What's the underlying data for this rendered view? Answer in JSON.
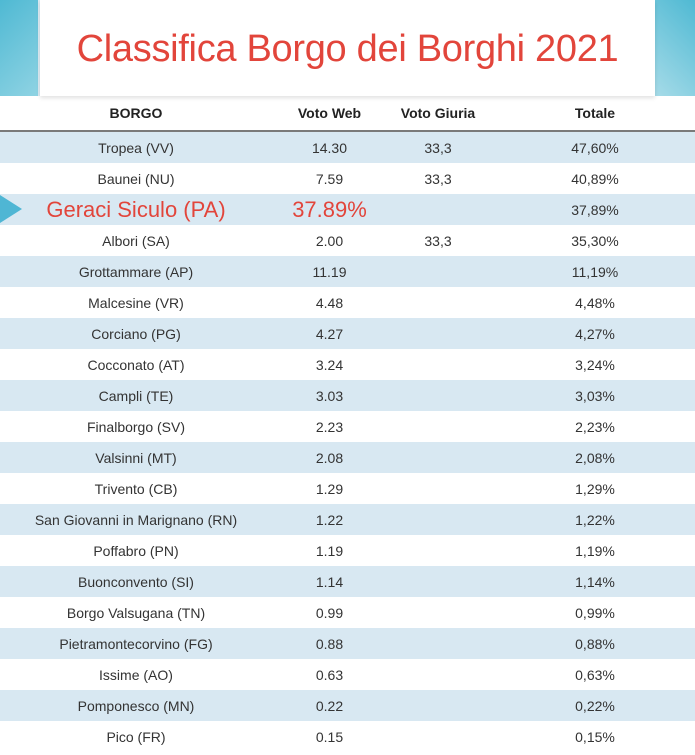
{
  "title": "Classifica Borgo dei Borghi 2021",
  "headers": {
    "borgo": "BORGO",
    "web": "Voto Web",
    "giuria": "Voto Giuria",
    "totale": "Totale"
  },
  "rows": [
    {
      "borgo": "Tropea (VV)",
      "web": "14.30",
      "giuria": "33,3",
      "totale": "47,60%"
    },
    {
      "borgo": "Baunei (NU)",
      "web": "7.59",
      "giuria": "33,3",
      "totale": "40,89%"
    },
    {
      "borgo": "Geraci Siculo (PA)",
      "web": "37.89%",
      "giuria": "",
      "totale": "37,89%"
    },
    {
      "borgo": "Albori (SA)",
      "web": "2.00",
      "giuria": "33,3",
      "totale": "35,30%"
    },
    {
      "borgo": "Grottammare (AP)",
      "web": "11.19",
      "giuria": "",
      "totale": "11,19%"
    },
    {
      "borgo": "Malcesine (VR)",
      "web": "4.48",
      "giuria": "",
      "totale": "4,48%"
    },
    {
      "borgo": "Corciano (PG)",
      "web": "4.27",
      "giuria": "",
      "totale": "4,27%"
    },
    {
      "borgo": "Cocconato (AT)",
      "web": "3.24",
      "giuria": "",
      "totale": "3,24%"
    },
    {
      "borgo": "Campli (TE)",
      "web": "3.03",
      "giuria": "",
      "totale": "3,03%"
    },
    {
      "borgo": "Finalborgo (SV)",
      "web": "2.23",
      "giuria": "",
      "totale": "2,23%"
    },
    {
      "borgo": "Valsinni (MT)",
      "web": "2.08",
      "giuria": "",
      "totale": "2,08%"
    },
    {
      "borgo": "Trivento (CB)",
      "web": "1.29",
      "giuria": "",
      "totale": "1,29%"
    },
    {
      "borgo": "San Giovanni in Marignano (RN)",
      "web": "1.22",
      "giuria": "",
      "totale": "1,22%"
    },
    {
      "borgo": "Poffabro (PN)",
      "web": "1.19",
      "giuria": "",
      "totale": "1,19%"
    },
    {
      "borgo": "Buonconvento (SI)",
      "web": "1.14",
      "giuria": "",
      "totale": "1,14%"
    },
    {
      "borgo": "Borgo Valsugana (TN)",
      "web": "0.99",
      "giuria": "",
      "totale": "0,99%"
    },
    {
      "borgo": "Pietramontecorvino (FG)",
      "web": "0.88",
      "giuria": "",
      "totale": "0,88%"
    },
    {
      "borgo": "Issime (AO)",
      "web": "0.63",
      "giuria": "",
      "totale": "0,63%"
    },
    {
      "borgo": "Pomponesco (MN)",
      "web": "0.22",
      "giuria": "",
      "totale": "0,22%"
    },
    {
      "borgo": "Pico (FR)",
      "web": "0.15",
      "giuria": "",
      "totale": "0,15%"
    }
  ],
  "highlight_index": 2,
  "colors": {
    "title": "#e2453b",
    "accent": "#4fb6d4",
    "stripe": "#d8e8f2"
  },
  "icons": {
    "highlight_marker": "right-arrow-icon"
  }
}
